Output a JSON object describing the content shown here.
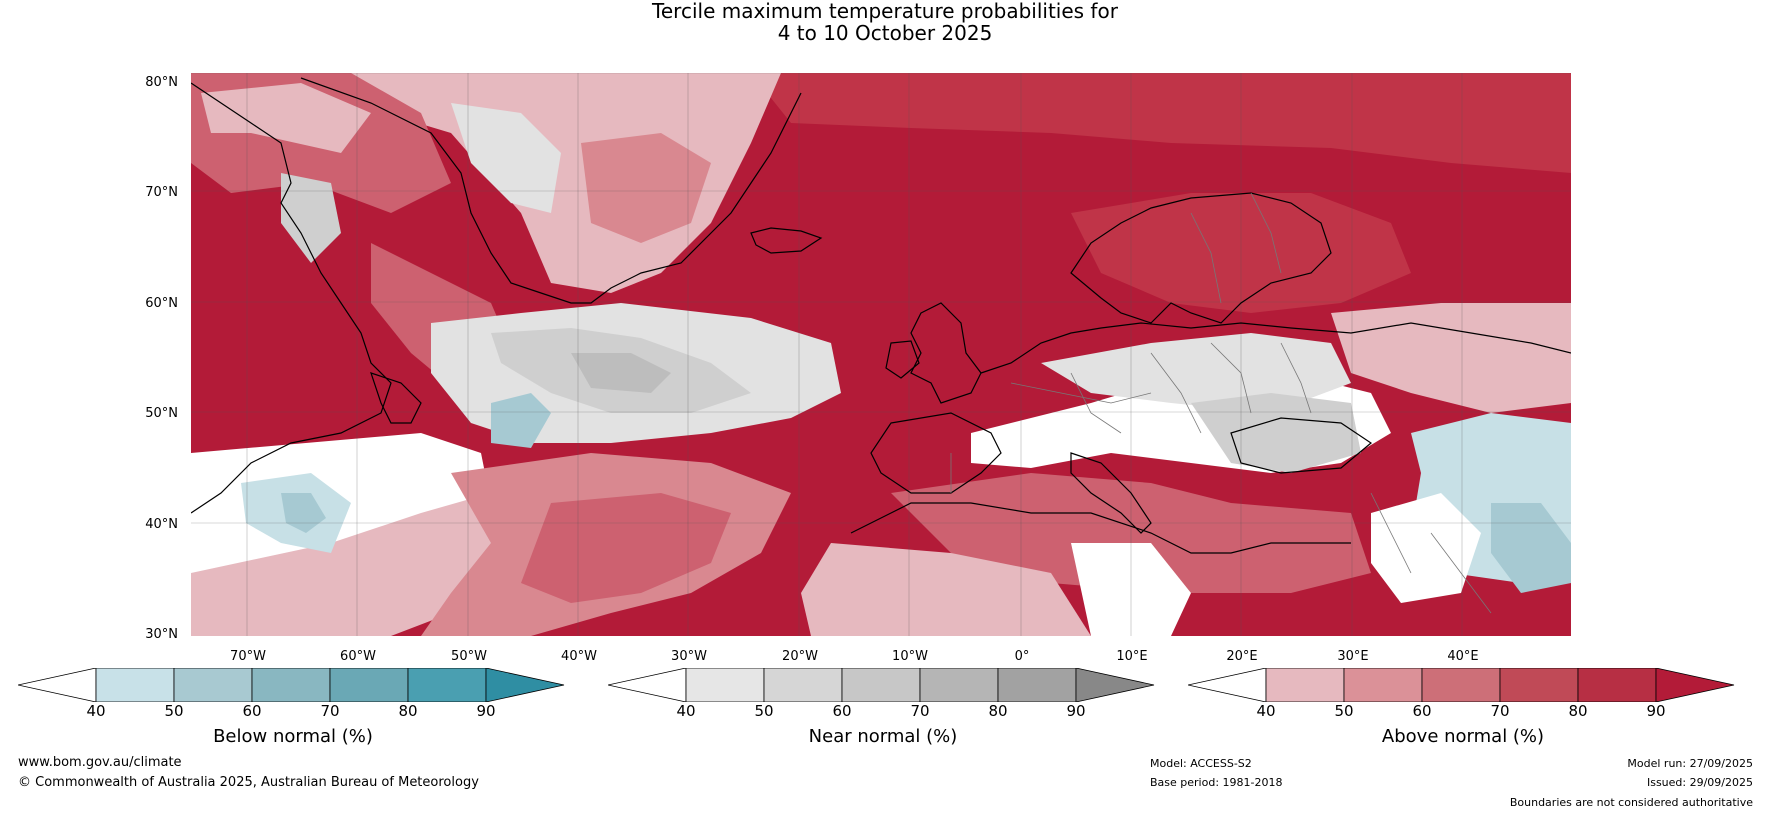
{
  "title": {
    "line1": "Tercile maximum temperature probabilities for",
    "line2": "4 to 10 October 2025"
  },
  "map": {
    "latitude_labels": [
      "80°N",
      "70°N",
      "60°N",
      "50°N",
      "40°N",
      "30°N"
    ],
    "longitude_labels": [
      "70°W",
      "60°W",
      "50°W",
      "40°W",
      "30°W",
      "20°W",
      "10°W",
      "0°",
      "10°E",
      "20°E",
      "30°E",
      "40°E"
    ],
    "colors": {
      "ocean_above_strong": "#b31b38",
      "above_80": "#c03448",
      "above_70": "#cd6170",
      "above_60": "#d98890",
      "above_50": "#e6b9bf",
      "near_50": "#e2e2e2",
      "near_60": "#cfcfcf",
      "near_70": "#bdbdbd",
      "below_50": "#c7e0e6",
      "below_60": "#a6c9d2"
    }
  },
  "colorbars": [
    {
      "label": "Below normal (%)",
      "ticks": [
        "40",
        "50",
        "60",
        "70",
        "80",
        "90"
      ],
      "colors": [
        "#ffffff",
        "#c8e1e8",
        "#a8c9d1",
        "#89b7c1",
        "#6aa8b5",
        "#4a9fb1",
        "#2f8ea3"
      ]
    },
    {
      "label": "Near normal (%)",
      "ticks": [
        "40",
        "50",
        "60",
        "70",
        "80",
        "90"
      ],
      "colors": [
        "#ffffff",
        "#e6e6e6",
        "#d6d6d6",
        "#c7c7c7",
        "#b5b5b5",
        "#a2a2a2",
        "#888888"
      ]
    },
    {
      "label": "Above normal (%)",
      "ticks": [
        "40",
        "50",
        "60",
        "70",
        "80",
        "90"
      ],
      "colors": [
        "#ffffff",
        "#e6b9bf",
        "#db9198",
        "#cd6f78",
        "#c04a57",
        "#b72f44",
        "#b31b38"
      ]
    }
  ],
  "footer": {
    "website": "www.bom.gov.au/climate",
    "copyright": "© Commonwealth of Australia 2025, Australian Bureau of Meteorology",
    "model": "Model: ACCESS-S2",
    "base_period": "Base period: 1981-2018",
    "model_run": "Model run: 27/09/2025",
    "issued": "Issued: 29/09/2025",
    "disclaimer": "Boundaries are not considered authoritative"
  }
}
